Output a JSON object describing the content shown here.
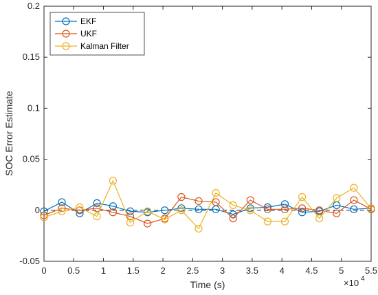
{
  "chart_data": {
    "type": "line",
    "title": "",
    "xlabel": "Time (s)",
    "ylabel": "SOC Error Estimate",
    "x_exponent_label": "×10",
    "x_exponent_power": "4",
    "xlim": [
      0,
      5.5
    ],
    "ylim": [
      -0.05,
      0.2
    ],
    "xticks": [
      "0",
      "0.5",
      "1",
      "1.5",
      "2",
      "2.5",
      "3",
      "3.5",
      "4",
      "4.5",
      "5",
      "5.5"
    ],
    "yticks": [
      "-0.05",
      "0",
      "0.05",
      "0.1",
      "0.15",
      "0.2"
    ],
    "x_tick_values": [
      0,
      0.5,
      1,
      1.5,
      2,
      2.5,
      3,
      3.5,
      4,
      4.5,
      5,
      5.5
    ],
    "y_tick_values": [
      -0.05,
      0,
      0.05,
      0.1,
      0.15,
      0.2
    ],
    "grid": false,
    "legend_position": "top-left",
    "zero_line": true,
    "x": [
      0,
      0.3,
      0.6,
      0.89,
      1.16,
      1.45,
      1.74,
      2.03,
      2.31,
      2.6,
      2.89,
      3.18,
      3.47,
      3.76,
      4.05,
      4.34,
      4.63,
      4.92,
      5.21,
      5.5
    ],
    "series": [
      {
        "name": "EKF",
        "color": "#0072BD",
        "values": [
          -0.001,
          0.008,
          -0.003,
          0.007,
          0.004,
          -0.001,
          -0.002,
          0.0,
          0.002,
          0.001,
          0.001,
          -0.004,
          0.002,
          0.003,
          0.006,
          -0.002,
          -0.001,
          0.005,
          0.001,
          0.002
        ]
      },
      {
        "name": "UKF",
        "color": "#D95319",
        "values": [
          -0.005,
          0.002,
          0.0,
          0.002,
          -0.002,
          -0.006,
          -0.013,
          -0.008,
          0.013,
          0.009,
          0.008,
          -0.008,
          0.01,
          0.001,
          0.001,
          0.002,
          0.0,
          -0.003,
          0.01,
          0.001
        ]
      },
      {
        "name": "Kalman Filter",
        "color": "#EDB120",
        "values": [
          -0.007,
          -0.001,
          0.003,
          -0.006,
          0.029,
          -0.012,
          -0.001,
          -0.009,
          0.0,
          -0.018,
          0.017,
          0.005,
          -0.0,
          -0.011,
          -0.011,
          0.013,
          -0.008,
          0.012,
          0.022,
          0.002
        ]
      }
    ]
  }
}
